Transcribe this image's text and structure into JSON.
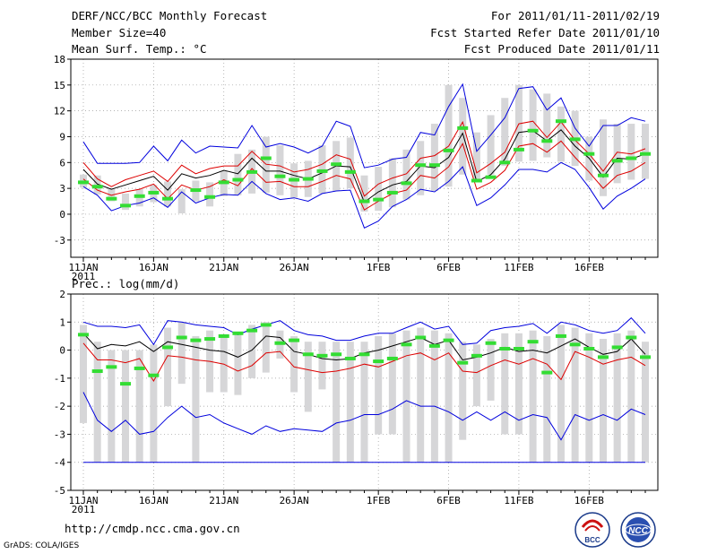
{
  "header": {
    "left": [
      "DERF/NCC/BCC Monthly Forecast",
      "Member Size=40",
      "Mean Surf. Temp.: °C"
    ],
    "right": [
      "For 2011/01/11-2011/02/19",
      "Fcst Started Refer Date 2011/01/10",
      "Fcst Produced Date 2011/01/11"
    ]
  },
  "footer": {
    "url": "http://cmdp.ncc.cma.gov.cn",
    "credit": "GrADS: COLA/IGES",
    "logo_left_label": "BCC",
    "logo_right_label": "NCC"
  },
  "colors": {
    "band": "#d6d6d8",
    "outer": "#0000dd",
    "inner": "#dd0000",
    "mean": "#000000",
    "obs": "#33dd33",
    "axis": "#000000"
  },
  "chart_data": [
    {
      "type": "line",
      "title": "Mean Surf. Temp.: °C",
      "xlabel": "",
      "ylabel": "°C",
      "ylim": [
        -5,
        18
      ],
      "yticks": [
        -3,
        0,
        3,
        6,
        9,
        12,
        15,
        18
      ],
      "xlim": [
        0,
        40
      ],
      "grid": true,
      "xticks": [
        {
          "label": "11JAN",
          "sub": "2011",
          "day": 0
        },
        {
          "label": "16JAN",
          "day": 5
        },
        {
          "label": "21JAN",
          "day": 10
        },
        {
          "label": "26JAN",
          "day": 15
        },
        {
          "label": "1FEB",
          "day": 21
        },
        {
          "label": "6FEB",
          "day": 26
        },
        {
          "label": "11FEB",
          "day": 31
        },
        {
          "label": "16FEB",
          "day": 36
        }
      ],
      "box_low": [
        3.1,
        2.3,
        1.5,
        0.5,
        0.9,
        1.4,
        0.9,
        0.1,
        1.5,
        0.9,
        2.1,
        2.2,
        2.4,
        2.5,
        2.2,
        1.9,
        2.0,
        2.4,
        2.7,
        3.0,
        0.3,
        0.4,
        0.8,
        1.7,
        2.2,
        2.7,
        3.2,
        4.6,
        4.0,
        4.6,
        5.6,
        6.1,
        6.2,
        6.6,
        6.1,
        5.6,
        3.9,
        2.1,
        3.6,
        4.0,
        4.1
      ],
      "box_high": [
        4.6,
        4.5,
        3.0,
        2.4,
        2.9,
        3.4,
        3.8,
        2.9,
        3.9,
        3.7,
        5.0,
        7.0,
        7.5,
        9.0,
        8.0,
        5.9,
        6.2,
        8.0,
        8.5,
        8.9,
        4.5,
        5.5,
        6.5,
        7.5,
        8.5,
        10.5,
        15.0,
        13.5,
        9.5,
        11.5,
        13.5,
        15.0,
        14.5,
        14.0,
        12.5,
        12.0,
        9.0,
        11.0,
        10.5,
        10.5,
        10.5
      ],
      "series": [
        {
          "name": "max",
          "values": [
            8.4,
            5.9,
            5.9,
            5.9,
            6.0,
            7.9,
            6.2,
            8.6,
            7.1,
            7.9,
            7.8,
            7.7,
            10.3,
            7.8,
            8.2,
            7.8,
            7.1,
            7.9,
            10.8,
            10.2,
            5.4,
            5.7,
            6.4,
            6.6,
            9.5,
            9.2,
            12.5,
            15.1,
            7.3,
            9.2,
            11.2,
            14.6,
            14.8,
            12.1,
            13.5,
            10.0,
            7.9,
            10.3,
            10.3,
            11.2,
            10.8
          ]
        },
        {
          "name": "p75",
          "values": [
            6.0,
            4.1,
            3.2,
            4.0,
            4.5,
            5.0,
            3.8,
            5.7,
            4.7,
            5.3,
            5.6,
            5.6,
            7.3,
            5.8,
            5.6,
            4.9,
            5.2,
            5.8,
            6.9,
            6.4,
            2.1,
            3.5,
            4.2,
            4.7,
            6.5,
            6.8,
            7.9,
            10.7,
            4.8,
            5.9,
            7.2,
            10.5,
            10.8,
            8.9,
            10.7,
            8.6,
            7.0,
            5.0,
            7.2,
            7.0,
            7.6
          ]
        },
        {
          "name": "mean",
          "values": [
            5.2,
            3.5,
            2.9,
            3.4,
            3.9,
            4.4,
            2.8,
            4.7,
            4.2,
            4.5,
            5.1,
            4.7,
            6.5,
            5.0,
            5.0,
            4.5,
            4.1,
            4.8,
            5.6,
            5.5,
            1.4,
            2.6,
            3.4,
            3.8,
            5.6,
            5.4,
            6.6,
            9.4,
            3.8,
            4.6,
            6.4,
            9.5,
            9.7,
            8.5,
            9.8,
            7.9,
            6.5,
            4.3,
            6.5,
            6.4,
            7.0
          ]
        },
        {
          "name": "p25",
          "values": [
            4.1,
            2.8,
            2.2,
            2.6,
            2.9,
            3.5,
            1.8,
            3.4,
            2.8,
            3.2,
            4.0,
            3.3,
            5.3,
            3.7,
            3.8,
            3.2,
            3.2,
            3.8,
            4.5,
            4.1,
            0.5,
            1.5,
            2.4,
            2.8,
            4.5,
            4.2,
            5.5,
            8.2,
            2.9,
            3.7,
            5.1,
            7.9,
            8.2,
            7.2,
            8.5,
            6.6,
            4.9,
            3.0,
            4.5,
            5.0,
            6.0
          ]
        },
        {
          "name": "min",
          "values": [
            3.2,
            2.2,
            0.4,
            1.0,
            1.3,
            1.9,
            0.8,
            2.6,
            1.3,
            1.9,
            2.3,
            2.2,
            3.8,
            2.4,
            1.7,
            1.9,
            1.5,
            2.4,
            2.7,
            2.8,
            -1.6,
            -0.8,
            0.9,
            1.7,
            2.9,
            2.6,
            3.8,
            5.5,
            1.0,
            1.9,
            3.4,
            5.2,
            5.2,
            4.9,
            6.0,
            5.2,
            3.1,
            0.6,
            2.1,
            3.0,
            4.1
          ]
        },
        {
          "name": "obs",
          "values": [
            3.7,
            3.2,
            1.8,
            1.0,
            2.1,
            2.5,
            1.8,
            null,
            2.8,
            2.0,
            3.7,
            4.0,
            4.9,
            6.5,
            4.4,
            4.0,
            4.1,
            5.0,
            5.8,
            4.9,
            1.5,
            1.7,
            2.5,
            3.6,
            5.7,
            5.7,
            7.4,
            10.0,
            3.9,
            4.3,
            6.0,
            7.5,
            9.7,
            8.5,
            10.8,
            8.7,
            7.0,
            4.5,
            6.2,
            6.5,
            7.0
          ]
        }
      ]
    },
    {
      "type": "line",
      "title": "Prec.: log(mm/d)",
      "xlabel": "",
      "ylabel": "log(mm/d)",
      "ylim": [
        -5,
        2
      ],
      "yticks": [
        -5,
        -4,
        -3,
        -2,
        -1,
        0,
        1,
        2
      ],
      "xlim": [
        0,
        40
      ],
      "grid": true,
      "xticks": [
        {
          "label": "11JAN",
          "sub": "2011",
          "day": 0
        },
        {
          "label": "16JAN",
          "day": 5
        },
        {
          "label": "21JAN",
          "day": 10
        },
        {
          "label": "26JAN",
          "day": 15
        },
        {
          "label": "1FEB",
          "day": 21
        },
        {
          "label": "6FEB",
          "day": 26
        },
        {
          "label": "11FEB",
          "day": 31
        },
        {
          "label": "16FEB",
          "day": 36
        }
      ],
      "box_low": [
        -2.6,
        -4,
        -4,
        -4,
        -4,
        -4,
        -2,
        -1.2,
        -4,
        -1.5,
        -1.5,
        -1.6,
        -1.0,
        -0.8,
        -0.3,
        -1.5,
        -2.2,
        -1.4,
        -4,
        -4,
        -4,
        -3.0,
        -3.0,
        -4,
        -4,
        -4,
        -4,
        -3.2,
        -2.0,
        -1.8,
        -3.0,
        -3.0,
        -4,
        -4,
        -4,
        -4,
        -4,
        -4,
        -4,
        -4,
        -4
      ],
      "box_high": [
        0.9,
        0.3,
        0.0,
        0.0,
        0.0,
        0.2,
        0.8,
        1.0,
        0.5,
        0.7,
        0.5,
        0.6,
        0.9,
        1.0,
        0.7,
        0.5,
        0.3,
        0.3,
        0.3,
        0.3,
        0.3,
        0.5,
        0.6,
        0.7,
        0.8,
        0.7,
        0.6,
        0.3,
        0.2,
        0.4,
        0.6,
        0.6,
        0.7,
        0.5,
        0.9,
        0.8,
        0.6,
        0.4,
        0.6,
        0.7,
        0.3
      ],
      "series": [
        {
          "name": "max",
          "values": [
            1.0,
            0.85,
            0.85,
            0.8,
            0.9,
            0.2,
            1.05,
            1.0,
            0.9,
            0.85,
            0.8,
            0.55,
            0.75,
            0.9,
            1.05,
            0.7,
            0.55,
            0.5,
            0.35,
            0.35,
            0.5,
            0.6,
            0.6,
            0.8,
            1.0,
            0.75,
            0.85,
            0.2,
            0.25,
            0.7,
            0.8,
            0.85,
            0.95,
            0.6,
            1.0,
            0.9,
            0.7,
            0.6,
            0.7,
            1.15,
            0.6
          ]
        },
        {
          "name": "mean",
          "values": [
            0.6,
            0.05,
            0.2,
            0.15,
            0.3,
            -0.05,
            0.3,
            0.2,
            0.1,
            0.0,
            -0.05,
            -0.25,
            0.0,
            0.5,
            0.45,
            -0.05,
            -0.15,
            -0.3,
            -0.35,
            -0.3,
            -0.1,
            0.0,
            0.15,
            0.3,
            0.45,
            0.2,
            0.35,
            -0.35,
            -0.25,
            -0.1,
            0.1,
            -0.05,
            0.0,
            -0.1,
            0.15,
            0.4,
            0.1,
            -0.15,
            -0.05,
            0.4,
            -0.15
          ]
        },
        {
          "name": "p25",
          "values": [
            0.25,
            -0.35,
            -0.35,
            -0.45,
            -0.3,
            -1.1,
            -0.2,
            -0.25,
            -0.35,
            -0.4,
            -0.5,
            -0.75,
            -0.55,
            -0.1,
            -0.05,
            -0.6,
            -0.7,
            -0.8,
            -0.75,
            -0.65,
            -0.5,
            -0.6,
            -0.4,
            -0.2,
            -0.1,
            -0.35,
            -0.1,
            -0.75,
            -0.8,
            -0.55,
            -0.35,
            -0.5,
            -0.3,
            -0.5,
            -1.05,
            -0.05,
            -0.25,
            -0.5,
            -0.35,
            -0.25,
            -0.55
          ]
        },
        {
          "name": "min",
          "values": [
            -1.5,
            -2.5,
            -2.9,
            -2.5,
            -3.0,
            -2.9,
            -2.4,
            -2.0,
            -2.4,
            -2.3,
            -2.6,
            -2.8,
            -3.0,
            -2.7,
            -2.9,
            -2.8,
            -2.85,
            -2.9,
            -2.6,
            -2.5,
            -2.3,
            -2.3,
            -2.1,
            -1.8,
            -2.0,
            -2.0,
            -2.2,
            -2.5,
            -2.2,
            -2.5,
            -2.2,
            -2.5,
            -2.3,
            -2.4,
            -3.2,
            -2.3,
            -2.5,
            -2.3,
            -2.5,
            -2.1,
            -2.3
          ]
        },
        {
          "name": "obs",
          "values": [
            0.55,
            -0.75,
            -0.6,
            -1.2,
            -0.65,
            -0.9,
            0.1,
            0.45,
            0.35,
            0.4,
            0.5,
            0.6,
            0.7,
            0.9,
            0.25,
            0.35,
            -0.15,
            -0.2,
            -0.15,
            -0.3,
            -0.15,
            -0.4,
            -0.3,
            0.2,
            0.45,
            0.15,
            0.35,
            -0.45,
            -0.2,
            0.25,
            0.05,
            0.05,
            0.3,
            -0.8,
            0.5,
            0.2,
            0.05,
            -0.25,
            0.1,
            0.45,
            -0.25
          ]
        },
        {
          "name": "floor",
          "values": [
            -4,
            -4,
            -4,
            -4,
            -4,
            -4,
            -4,
            -4,
            -4,
            -4,
            -4,
            -4,
            -4,
            -4,
            -4,
            -4,
            -4,
            -4,
            -4,
            -4,
            -4,
            -4,
            -4,
            -4,
            -4,
            -4,
            -4,
            -4,
            -4,
            -4,
            -4,
            -4,
            -4,
            -4,
            -4,
            -4,
            -4,
            -4,
            -4,
            -4,
            -4
          ]
        }
      ]
    }
  ]
}
